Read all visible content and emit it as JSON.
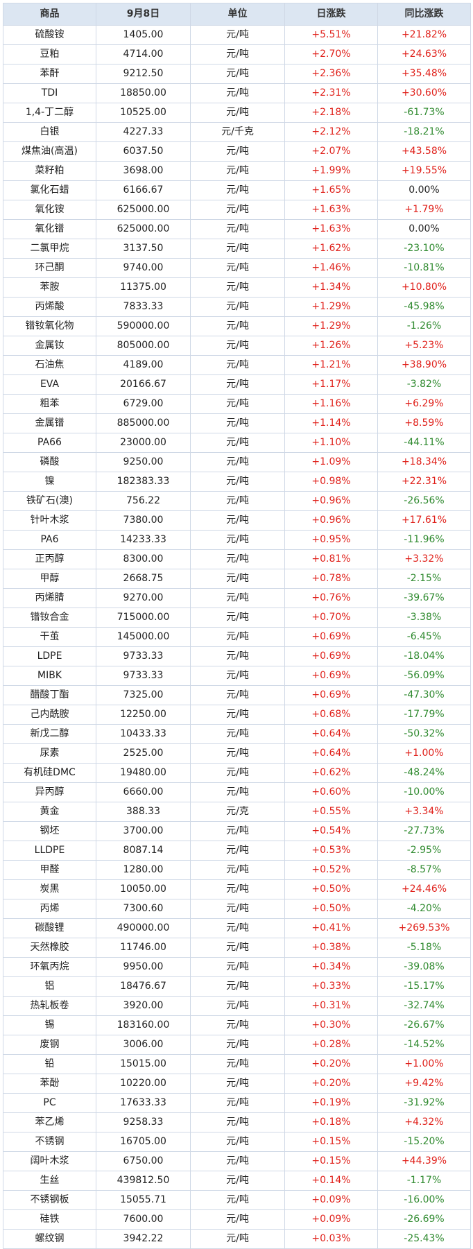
{
  "colors": {
    "header_bg": "#dce6f2",
    "border": "#cfd8e6",
    "up": "#e0201a",
    "down": "#2f8a2f",
    "flat": "#222222"
  },
  "table": {
    "headers": [
      "商品",
      "9月8日",
      "单位",
      "日涨跌",
      "同比涨跌"
    ],
    "rows": [
      [
        "硫酸铵",
        "1405.00",
        "元/吨",
        "+5.51%",
        "+21.82%"
      ],
      [
        "豆粕",
        "4714.00",
        "元/吨",
        "+2.70%",
        "+24.63%"
      ],
      [
        "苯酐",
        "9212.50",
        "元/吨",
        "+2.36%",
        "+35.48%"
      ],
      [
        "TDI",
        "18850.00",
        "元/吨",
        "+2.31%",
        "+30.60%"
      ],
      [
        "1,4-丁二醇",
        "10525.00",
        "元/吨",
        "+2.18%",
        "-61.73%"
      ],
      [
        "白银",
        "4227.33",
        "元/千克",
        "+2.12%",
        "-18.21%"
      ],
      [
        "煤焦油(高温)",
        "6037.50",
        "元/吨",
        "+2.07%",
        "+43.58%"
      ],
      [
        "菜籽粕",
        "3698.00",
        "元/吨",
        "+1.99%",
        "+19.55%"
      ],
      [
        "氯化石蜡",
        "6166.67",
        "元/吨",
        "+1.65%",
        "0.00%"
      ],
      [
        "氧化铵",
        "625000.00",
        "元/吨",
        "+1.63%",
        "+1.79%"
      ],
      [
        "氧化镨",
        "625000.00",
        "元/吨",
        "+1.63%",
        "0.00%"
      ],
      [
        "二氯甲烷",
        "3137.50",
        "元/吨",
        "+1.62%",
        "-23.10%"
      ],
      [
        "环己酮",
        "9740.00",
        "元/吨",
        "+1.46%",
        "-10.81%"
      ],
      [
        "苯胺",
        "11375.00",
        "元/吨",
        "+1.34%",
        "+10.80%"
      ],
      [
        "丙烯酸",
        "7833.33",
        "元/吨",
        "+1.29%",
        "-45.98%"
      ],
      [
        "镨钕氧化物",
        "590000.00",
        "元/吨",
        "+1.29%",
        "-1.26%"
      ],
      [
        "金属钕",
        "805000.00",
        "元/吨",
        "+1.26%",
        "+5.23%"
      ],
      [
        "石油焦",
        "4189.00",
        "元/吨",
        "+1.21%",
        "+38.90%"
      ],
      [
        "EVA",
        "20166.67",
        "元/吨",
        "+1.17%",
        "-3.82%"
      ],
      [
        "粗苯",
        "6729.00",
        "元/吨",
        "+1.16%",
        "+6.29%"
      ],
      [
        "金属镨",
        "885000.00",
        "元/吨",
        "+1.14%",
        "+8.59%"
      ],
      [
        "PA66",
        "23000.00",
        "元/吨",
        "+1.10%",
        "-44.11%"
      ],
      [
        "磷酸",
        "9250.00",
        "元/吨",
        "+1.09%",
        "+18.34%"
      ],
      [
        "镍",
        "182383.33",
        "元/吨",
        "+0.98%",
        "+22.31%"
      ],
      [
        "铁矿石(澳)",
        "756.22",
        "元/吨",
        "+0.96%",
        "-26.56%"
      ],
      [
        "针叶木浆",
        "7380.00",
        "元/吨",
        "+0.96%",
        "+17.61%"
      ],
      [
        "PA6",
        "14233.33",
        "元/吨",
        "+0.95%",
        "-11.96%"
      ],
      [
        "正丙醇",
        "8300.00",
        "元/吨",
        "+0.81%",
        "+3.32%"
      ],
      [
        "甲醇",
        "2668.75",
        "元/吨",
        "+0.78%",
        "-2.15%"
      ],
      [
        "丙烯腈",
        "9270.00",
        "元/吨",
        "+0.76%",
        "-39.67%"
      ],
      [
        "镨钕合金",
        "715000.00",
        "元/吨",
        "+0.70%",
        "-3.38%"
      ],
      [
        "干茧",
        "145000.00",
        "元/吨",
        "+0.69%",
        "-6.45%"
      ],
      [
        "LDPE",
        "9733.33",
        "元/吨",
        "+0.69%",
        "-18.04%"
      ],
      [
        "MIBK",
        "9733.33",
        "元/吨",
        "+0.69%",
        "-56.09%"
      ],
      [
        "醋酸丁酯",
        "7325.00",
        "元/吨",
        "+0.69%",
        "-47.30%"
      ],
      [
        "己内酰胺",
        "12250.00",
        "元/吨",
        "+0.68%",
        "-17.79%"
      ],
      [
        "新戊二醇",
        "10433.33",
        "元/吨",
        "+0.64%",
        "-50.32%"
      ],
      [
        "尿素",
        "2525.00",
        "元/吨",
        "+0.64%",
        "+1.00%"
      ],
      [
        "有机硅DMC",
        "19480.00",
        "元/吨",
        "+0.62%",
        "-48.24%"
      ],
      [
        "异丙醇",
        "6660.00",
        "元/吨",
        "+0.60%",
        "-10.00%"
      ],
      [
        "黄金",
        "388.33",
        "元/克",
        "+0.55%",
        "+3.34%"
      ],
      [
        "钢坯",
        "3700.00",
        "元/吨",
        "+0.54%",
        "-27.73%"
      ],
      [
        "LLDPE",
        "8087.14",
        "元/吨",
        "+0.53%",
        "-2.95%"
      ],
      [
        "甲醛",
        "1280.00",
        "元/吨",
        "+0.52%",
        "-8.57%"
      ],
      [
        "炭黑",
        "10050.00",
        "元/吨",
        "+0.50%",
        "+24.46%"
      ],
      [
        "丙烯",
        "7300.60",
        "元/吨",
        "+0.50%",
        "-4.20%"
      ],
      [
        "碳酸锂",
        "490000.00",
        "元/吨",
        "+0.41%",
        "+269.53%"
      ],
      [
        "天然橡胶",
        "11746.00",
        "元/吨",
        "+0.38%",
        "-5.18%"
      ],
      [
        "环氧丙烷",
        "9950.00",
        "元/吨",
        "+0.34%",
        "-39.08%"
      ],
      [
        "铝",
        "18476.67",
        "元/吨",
        "+0.33%",
        "-15.17%"
      ],
      [
        "热轧板卷",
        "3920.00",
        "元/吨",
        "+0.31%",
        "-32.74%"
      ],
      [
        "锡",
        "183160.00",
        "元/吨",
        "+0.30%",
        "-26.67%"
      ],
      [
        "废钢",
        "3006.00",
        "元/吨",
        "+0.28%",
        "-14.52%"
      ],
      [
        "铅",
        "15015.00",
        "元/吨",
        "+0.20%",
        "+1.00%"
      ],
      [
        "苯酚",
        "10220.00",
        "元/吨",
        "+0.20%",
        "+9.42%"
      ],
      [
        "PC",
        "17633.33",
        "元/吨",
        "+0.19%",
        "-31.92%"
      ],
      [
        "苯乙烯",
        "9258.33",
        "元/吨",
        "+0.18%",
        "+4.32%"
      ],
      [
        "不锈钢",
        "16705.00",
        "元/吨",
        "+0.15%",
        "-15.20%"
      ],
      [
        "阔叶木浆",
        "6750.00",
        "元/吨",
        "+0.15%",
        "+44.39%"
      ],
      [
        "生丝",
        "439812.50",
        "元/吨",
        "+0.14%",
        "-1.17%"
      ],
      [
        "不锈钢板",
        "15055.71",
        "元/吨",
        "+0.09%",
        "-16.00%"
      ],
      [
        "硅铁",
        "7600.00",
        "元/吨",
        "+0.09%",
        "-26.69%"
      ],
      [
        "螺纹钢",
        "3942.22",
        "元/吨",
        "+0.03%",
        "-25.43%"
      ]
    ]
  }
}
